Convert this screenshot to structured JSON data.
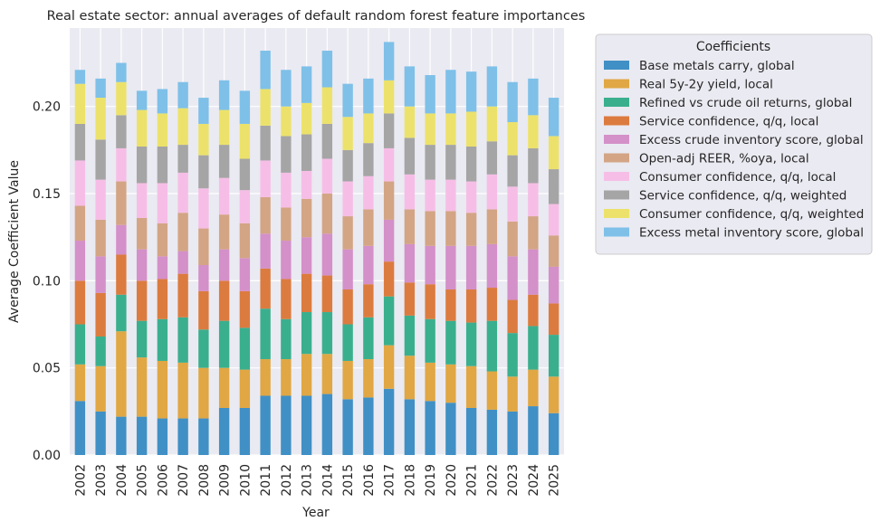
{
  "chart_data": {
    "type": "bar",
    "stacked": true,
    "title": "Real estate sector: annual averages of default random forest feature importances",
    "xlabel": "Year",
    "ylabel": "Average Coefficient Value",
    "ylim": [
      0,
      0.245
    ],
    "yticks": [
      0.0,
      0.05,
      0.1,
      0.15,
      0.2
    ],
    "ytick_labels": [
      "0.00",
      "0.05",
      "0.10",
      "0.15",
      "0.20"
    ],
    "grid": true,
    "legend_title": "Coefficients",
    "legend_position": "outside-top-right",
    "categories": [
      "2002",
      "2003",
      "2004",
      "2005",
      "2006",
      "2007",
      "2008",
      "2009",
      "2010",
      "2011",
      "2012",
      "2013",
      "2014",
      "2015",
      "2016",
      "2017",
      "2018",
      "2019",
      "2020",
      "2021",
      "2022",
      "2023",
      "2024",
      "2025"
    ],
    "series": [
      {
        "name": "Base metals carry, global",
        "color": "#4090c5",
        "values": [
          0.031,
          0.025,
          0.022,
          0.022,
          0.021,
          0.021,
          0.021,
          0.027,
          0.027,
          0.034,
          0.034,
          0.034,
          0.035,
          0.032,
          0.033,
          0.038,
          0.032,
          0.031,
          0.03,
          0.027,
          0.026,
          0.025,
          0.028,
          0.024
        ]
      },
      {
        "name": "Real 5y-2y yield, local",
        "color": "#e0a744",
        "values": [
          0.021,
          0.026,
          0.049,
          0.034,
          0.033,
          0.032,
          0.029,
          0.023,
          0.022,
          0.021,
          0.021,
          0.024,
          0.023,
          0.022,
          0.022,
          0.025,
          0.025,
          0.022,
          0.022,
          0.024,
          0.022,
          0.02,
          0.021,
          0.021
        ]
      },
      {
        "name": "Refined vs crude oil returns, global",
        "color": "#3aaf8e",
        "values": [
          0.023,
          0.017,
          0.021,
          0.021,
          0.024,
          0.026,
          0.022,
          0.027,
          0.024,
          0.029,
          0.023,
          0.024,
          0.024,
          0.021,
          0.024,
          0.028,
          0.023,
          0.025,
          0.025,
          0.025,
          0.029,
          0.025,
          0.025,
          0.024
        ]
      },
      {
        "name": "Service confidence, q/q, local",
        "color": "#dc7b3f",
        "values": [
          0.025,
          0.025,
          0.023,
          0.023,
          0.023,
          0.025,
          0.022,
          0.023,
          0.021,
          0.023,
          0.023,
          0.022,
          0.021,
          0.02,
          0.019,
          0.02,
          0.019,
          0.02,
          0.018,
          0.019,
          0.019,
          0.019,
          0.018,
          0.018
        ]
      },
      {
        "name": "Excess crude inventory score, global",
        "color": "#d490c8",
        "values": [
          0.023,
          0.021,
          0.017,
          0.018,
          0.013,
          0.013,
          0.015,
          0.018,
          0.019,
          0.02,
          0.022,
          0.021,
          0.024,
          0.023,
          0.022,
          0.024,
          0.022,
          0.022,
          0.025,
          0.025,
          0.025,
          0.025,
          0.026,
          0.021
        ]
      },
      {
        "name": "Open-adj REER, %oya, local",
        "color": "#d3a585",
        "values": [
          0.02,
          0.021,
          0.025,
          0.018,
          0.019,
          0.022,
          0.021,
          0.02,
          0.02,
          0.021,
          0.019,
          0.022,
          0.023,
          0.019,
          0.021,
          0.022,
          0.02,
          0.02,
          0.02,
          0.019,
          0.02,
          0.02,
          0.019,
          0.018
        ]
      },
      {
        "name": "Consumer confidence, q/q, local",
        "color": "#f6bee6",
        "values": [
          0.026,
          0.023,
          0.019,
          0.02,
          0.023,
          0.023,
          0.023,
          0.021,
          0.019,
          0.021,
          0.02,
          0.016,
          0.02,
          0.02,
          0.019,
          0.019,
          0.02,
          0.018,
          0.018,
          0.018,
          0.02,
          0.02,
          0.019,
          0.018
        ]
      },
      {
        "name": "Service confidence, q/q, weighted",
        "color": "#a5a5a5",
        "values": [
          0.021,
          0.023,
          0.019,
          0.021,
          0.021,
          0.016,
          0.019,
          0.019,
          0.018,
          0.02,
          0.021,
          0.021,
          0.02,
          0.018,
          0.019,
          0.02,
          0.021,
          0.02,
          0.02,
          0.02,
          0.019,
          0.018,
          0.02,
          0.02
        ]
      },
      {
        "name": "Consumer confidence, q/q, weighted",
        "color": "#ece26b",
        "values": [
          0.023,
          0.024,
          0.019,
          0.021,
          0.019,
          0.021,
          0.018,
          0.02,
          0.02,
          0.021,
          0.017,
          0.018,
          0.021,
          0.019,
          0.017,
          0.019,
          0.018,
          0.018,
          0.018,
          0.02,
          0.02,
          0.019,
          0.019,
          0.019
        ]
      },
      {
        "name": "Excess metal inventory score, global",
        "color": "#7ec0e8",
        "values": [
          0.008,
          0.011,
          0.011,
          0.011,
          0.014,
          0.015,
          0.015,
          0.017,
          0.019,
          0.022,
          0.021,
          0.021,
          0.021,
          0.019,
          0.02,
          0.022,
          0.023,
          0.022,
          0.025,
          0.023,
          0.023,
          0.023,
          0.021,
          0.022
        ]
      }
    ]
  }
}
